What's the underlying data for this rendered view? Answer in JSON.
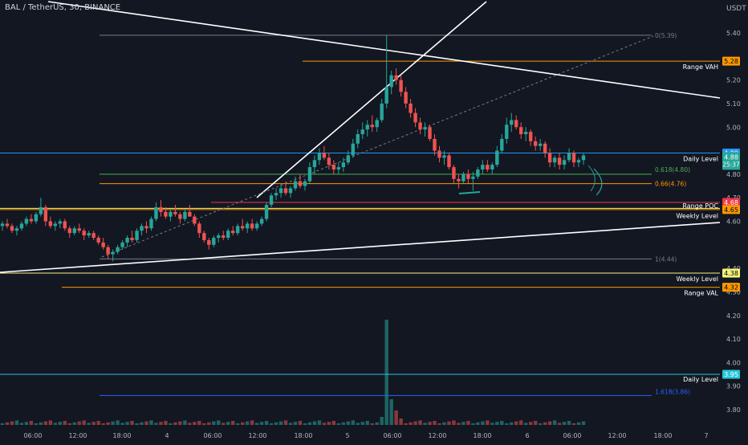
{
  "header": {
    "symbol_title": "BAL / TetherUS, 30, BINANCE",
    "currency": "USDT",
    "countdown": "25:37"
  },
  "colors": {
    "background": "#131722",
    "up": "#26a69a",
    "down": "#ef5350",
    "grid_text": "#b2b5be",
    "trendline": "#ffffff",
    "daily_level": "#2196f3",
    "weekly_level": "#f5f57a",
    "range": "#ff9800",
    "fib": "#787b86",
    "fib_green": "#4caf50",
    "fib_orange": "#ff9800",
    "fib_blue": "#2962ff",
    "cyan": "#26c6da"
  },
  "chart_data": {
    "type": "candlestick",
    "y_axis": {
      "min": 3.75,
      "max": 5.55,
      "ticks": [
        "5.40",
        "5.20",
        "5.10",
        "5.00",
        "4.80",
        "4.70",
        "4.60",
        "4.40",
        "4.30",
        "4.20",
        "4.10",
        "4.00",
        "3.90",
        "3.80"
      ]
    },
    "x_axis": {
      "ticks": [
        "06:00",
        "12:00",
        "18:00",
        "4",
        "06:00",
        "12:00",
        "18:00",
        "5",
        "06:00",
        "12:00",
        "18:00",
        "6",
        "06:00",
        "12:00",
        "18:00",
        "7"
      ]
    },
    "levels": [
      {
        "id": "range-vah",
        "label": "Range VAH",
        "badge": "5.28",
        "value": 5.28,
        "color": "#ff9800"
      },
      {
        "id": "daily-level-1",
        "label": "Daily Level",
        "badge": "4.89",
        "value": 4.89,
        "color": "#2196f3"
      },
      {
        "id": "current-price",
        "label": "",
        "badge": "4.88",
        "value": 4.88,
        "color": "#26a69a"
      },
      {
        "id": "red-level",
        "label": "",
        "badge": "4.68",
        "value": 4.68,
        "color": "#f23645"
      },
      {
        "id": "range-poc",
        "label": "Range POC",
        "badge": "4.65",
        "value": 4.65,
        "color": "#ff9800"
      },
      {
        "id": "weekly-level-1",
        "label": "Weekly Level",
        "badge": "",
        "value": 4.645,
        "color": "#f5f57a"
      },
      {
        "id": "weekly-level-2",
        "label": "Weekly Level",
        "badge": "4.38",
        "value": 4.38,
        "color": "#f5f57a"
      },
      {
        "id": "range-val",
        "label": "Range VAL",
        "badge": "4.32",
        "value": 4.32,
        "color": "#ff9800"
      },
      {
        "id": "daily-level-2",
        "label": "Daily Level",
        "badge": "3.95",
        "value": 3.95,
        "color": "#26c6da"
      }
    ],
    "fib_levels": [
      {
        "label": "0(5.39)",
        "value": 5.39,
        "color": "#787b86"
      },
      {
        "label": "0.618(4.80)",
        "value": 4.8,
        "color": "#4caf50"
      },
      {
        "label": "0.66(4.76)",
        "value": 4.76,
        "color": "#ff9800"
      },
      {
        "label": "1(4.44)",
        "value": 4.44,
        "color": "#787b86"
      },
      {
        "label": "1.618(3.86)",
        "value": 3.86,
        "color": "#2962ff"
      }
    ],
    "candles": [
      [
        4.58,
        4.6,
        4.56,
        4.59
      ],
      [
        4.59,
        4.61,
        4.57,
        4.58
      ],
      [
        4.58,
        4.59,
        4.55,
        4.56
      ],
      [
        4.56,
        4.58,
        4.54,
        4.57
      ],
      [
        4.57,
        4.6,
        4.56,
        4.59
      ],
      [
        4.59,
        4.62,
        4.58,
        4.61
      ],
      [
        4.61,
        4.63,
        4.59,
        4.6
      ],
      [
        4.6,
        4.64,
        4.59,
        4.63
      ],
      [
        4.63,
        4.7,
        4.62,
        4.66
      ],
      [
        4.66,
        4.67,
        4.58,
        4.6
      ],
      [
        4.6,
        4.62,
        4.57,
        4.58
      ],
      [
        4.58,
        4.6,
        4.56,
        4.59
      ],
      [
        4.59,
        4.61,
        4.57,
        4.6
      ],
      [
        4.6,
        4.61,
        4.56,
        4.57
      ],
      [
        4.57,
        4.58,
        4.53,
        4.55
      ],
      [
        4.55,
        4.58,
        4.54,
        4.57
      ],
      [
        4.57,
        4.59,
        4.55,
        4.56
      ],
      [
        4.56,
        4.57,
        4.52,
        4.54
      ],
      [
        4.54,
        4.56,
        4.53,
        4.55
      ],
      [
        4.55,
        4.56,
        4.52,
        4.53
      ],
      [
        4.53,
        4.54,
        4.5,
        4.51
      ],
      [
        4.51,
        4.53,
        4.48,
        4.49
      ],
      [
        4.49,
        4.5,
        4.44,
        4.46
      ],
      [
        4.46,
        4.48,
        4.43,
        4.47
      ],
      [
        4.47,
        4.5,
        4.46,
        4.49
      ],
      [
        4.49,
        4.52,
        4.48,
        4.51
      ],
      [
        4.51,
        4.54,
        4.49,
        4.53
      ],
      [
        4.53,
        4.56,
        4.51,
        4.52
      ],
      [
        4.52,
        4.57,
        4.51,
        4.56
      ],
      [
        4.56,
        4.59,
        4.54,
        4.58
      ],
      [
        4.58,
        4.6,
        4.55,
        4.57
      ],
      [
        4.57,
        4.62,
        4.56,
        4.61
      ],
      [
        4.61,
        4.68,
        4.6,
        4.66
      ],
      [
        4.66,
        4.69,
        4.62,
        4.64
      ],
      [
        4.64,
        4.66,
        4.61,
        4.62
      ],
      [
        4.62,
        4.65,
        4.6,
        4.64
      ],
      [
        4.64,
        4.67,
        4.62,
        4.63
      ],
      [
        4.63,
        4.64,
        4.59,
        4.61
      ],
      [
        4.61,
        4.65,
        4.6,
        4.64
      ],
      [
        4.64,
        4.67,
        4.62,
        4.62
      ],
      [
        4.62,
        4.63,
        4.58,
        4.59
      ],
      [
        4.59,
        4.6,
        4.53,
        4.55
      ],
      [
        4.55,
        4.56,
        4.51,
        4.52
      ],
      [
        4.52,
        4.53,
        4.48,
        4.5
      ],
      [
        4.5,
        4.54,
        4.49,
        4.53
      ],
      [
        4.53,
        4.55,
        4.51,
        4.54
      ],
      [
        4.54,
        4.56,
        4.52,
        4.53
      ],
      [
        4.53,
        4.57,
        4.52,
        4.56
      ],
      [
        4.56,
        4.58,
        4.54,
        4.55
      ],
      [
        4.55,
        4.59,
        4.54,
        4.58
      ],
      [
        4.58,
        4.61,
        4.56,
        4.57
      ],
      [
        4.57,
        4.6,
        4.55,
        4.59
      ],
      [
        4.59,
        4.61,
        4.56,
        4.57
      ],
      [
        4.57,
        4.6,
        4.56,
        4.59
      ],
      [
        4.59,
        4.62,
        4.58,
        4.61
      ],
      [
        4.61,
        4.68,
        4.6,
        4.67
      ],
      [
        4.67,
        4.72,
        4.66,
        4.71
      ],
      [
        4.71,
        4.74,
        4.69,
        4.72
      ],
      [
        4.72,
        4.76,
        4.7,
        4.74
      ],
      [
        4.74,
        4.77,
        4.71,
        4.72
      ],
      [
        4.72,
        4.75,
        4.7,
        4.74
      ],
      [
        4.74,
        4.79,
        4.73,
        4.77
      ],
      [
        4.77,
        4.8,
        4.74,
        4.75
      ],
      [
        4.75,
        4.78,
        4.73,
        4.77
      ],
      [
        4.77,
        4.85,
        4.76,
        4.83
      ],
      [
        4.83,
        4.88,
        4.8,
        4.86
      ],
      [
        4.86,
        4.91,
        4.84,
        4.89
      ],
      [
        4.89,
        4.92,
        4.86,
        4.87
      ],
      [
        4.87,
        4.89,
        4.82,
        4.84
      ],
      [
        4.84,
        4.86,
        4.8,
        4.82
      ],
      [
        4.82,
        4.85,
        4.8,
        4.83
      ],
      [
        4.83,
        4.87,
        4.81,
        4.85
      ],
      [
        4.85,
        4.9,
        4.84,
        4.88
      ],
      [
        4.88,
        4.95,
        4.87,
        4.93
      ],
      [
        4.93,
        4.99,
        4.91,
        4.97
      ],
      [
        4.97,
        5.02,
        4.95,
        4.99
      ],
      [
        4.99,
        5.03,
        4.96,
        5.01
      ],
      [
        5.01,
        5.05,
        4.98,
        5.0
      ],
      [
        5.0,
        5.04,
        4.98,
        5.03
      ],
      [
        5.03,
        5.12,
        5.02,
        5.1
      ],
      [
        5.1,
        5.39,
        5.08,
        5.17
      ],
      [
        5.17,
        5.24,
        5.14,
        5.22
      ],
      [
        5.22,
        5.25,
        5.18,
        5.2
      ],
      [
        5.2,
        5.22,
        5.13,
        5.15
      ],
      [
        5.15,
        5.17,
        5.08,
        5.1
      ],
      [
        5.1,
        5.12,
        5.04,
        5.06
      ],
      [
        5.06,
        5.08,
        5.0,
        5.02
      ],
      [
        5.02,
        5.04,
        4.97,
        4.99
      ],
      [
        4.99,
        5.02,
        4.96,
        5.0
      ],
      [
        5.0,
        5.01,
        4.94,
        4.95
      ],
      [
        4.95,
        4.97,
        4.88,
        4.9
      ],
      [
        4.9,
        4.92,
        4.85,
        4.87
      ],
      [
        4.87,
        4.9,
        4.84,
        4.88
      ],
      [
        4.88,
        4.89,
        4.82,
        4.83
      ],
      [
        4.83,
        4.84,
        4.76,
        4.78
      ],
      [
        4.78,
        4.8,
        4.74,
        4.77
      ],
      [
        4.77,
        4.81,
        4.76,
        4.8
      ],
      [
        4.8,
        4.82,
        4.76,
        4.78
      ],
      [
        4.78,
        4.81,
        4.73,
        4.79
      ],
      [
        4.79,
        4.83,
        4.78,
        4.82
      ],
      [
        4.82,
        4.86,
        4.8,
        4.84
      ],
      [
        4.84,
        4.86,
        4.81,
        4.82
      ],
      [
        4.82,
        4.85,
        4.8,
        4.84
      ],
      [
        4.84,
        4.92,
        4.83,
        4.9
      ],
      [
        4.9,
        4.97,
        4.89,
        4.95
      ],
      [
        4.95,
        5.04,
        4.93,
        5.01
      ],
      [
        5.01,
        5.06,
        4.98,
        5.03
      ],
      [
        5.03,
        5.05,
        4.99,
        5.0
      ],
      [
        5.0,
        5.02,
        4.95,
        4.97
      ],
      [
        4.97,
        5.0,
        4.94,
        4.98
      ],
      [
        4.98,
        4.99,
        4.92,
        4.94
      ],
      [
        4.94,
        4.96,
        4.9,
        4.92
      ],
      [
        4.92,
        4.95,
        4.9,
        4.93
      ],
      [
        4.93,
        4.94,
        4.87,
        4.89
      ],
      [
        4.89,
        4.91,
        4.83,
        4.85
      ],
      [
        4.85,
        4.88,
        4.83,
        4.87
      ],
      [
        4.87,
        4.89,
        4.82,
        4.84
      ],
      [
        4.84,
        4.88,
        4.82,
        4.86
      ],
      [
        4.86,
        4.91,
        4.85,
        4.89
      ],
      [
        4.89,
        4.9,
        4.83,
        4.85
      ],
      [
        4.85,
        4.87,
        4.83,
        4.86
      ],
      [
        4.86,
        4.89,
        4.84,
        4.88
      ]
    ],
    "volume_spike_index": 80
  }
}
